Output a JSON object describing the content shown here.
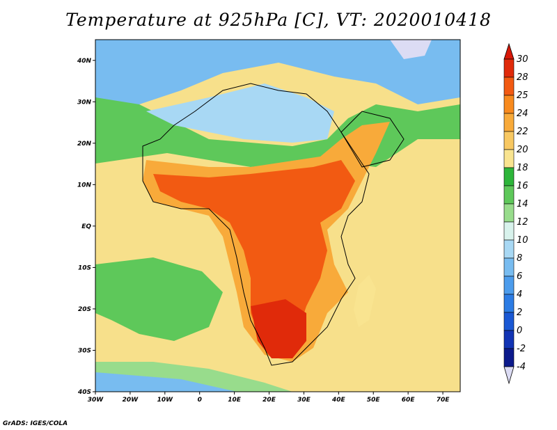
{
  "title": "Temperature at 925hPa [C], VT: 2020010418",
  "credit": "GrADS: IGES/COLA",
  "map": {
    "lon_range": [
      -30,
      75
    ],
    "lat_range": [
      -40,
      45
    ],
    "lon_ticks": [
      "30W",
      "20W",
      "10W",
      "0",
      "10E",
      "20E",
      "30E",
      "40E",
      "50E",
      "60E",
      "70E"
    ],
    "lat_ticks": [
      "40N",
      "30N",
      "20N",
      "10N",
      "EQ",
      "10S",
      "20S",
      "30S",
      "40S"
    ],
    "ocean_color": "#f7e08b"
  },
  "colorbar": {
    "labels": [
      "30",
      "28",
      "25",
      "24",
      "22",
      "20",
      "18",
      "16",
      "14",
      "12",
      "10",
      "8",
      "6",
      "4",
      "2",
      "0",
      "-2",
      "-4"
    ],
    "colors": [
      "#e02a0a",
      "#f25a12",
      "#f88a1e",
      "#f8aa3a",
      "#f8c862",
      "#f9e490",
      "#2db53a",
      "#5ec85a",
      "#98dc8c",
      "#d8f2ec",
      "#a8d8f4",
      "#78bcf0",
      "#4c9cec",
      "#2c7ce4",
      "#1a58d4",
      "#1234b4",
      "#0c1a8c"
    ],
    "top_color": "#d81808",
    "bottom_color": "#dcdcf4"
  }
}
